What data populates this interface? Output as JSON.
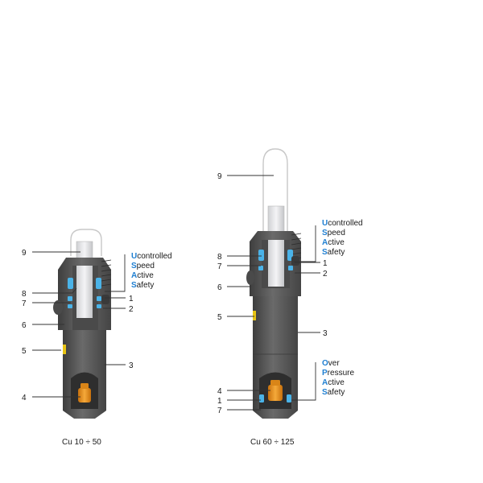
{
  "small": {
    "caption": "Cu 10 ÷ 50",
    "labels": {
      "9": "9",
      "8": "8",
      "7": "7",
      "6": "6",
      "5": "5",
      "4": "4",
      "3": "3",
      "1": "1",
      "2": "2"
    },
    "usas": [
      {
        "first": "U",
        "rest": "controlled"
      },
      {
        "first": "S",
        "rest": "peed"
      },
      {
        "first": "A",
        "rest": "ctive"
      },
      {
        "first": "S",
        "rest": "afety"
      }
    ]
  },
  "large": {
    "caption": "Cu 60 ÷ 125",
    "labels": {
      "9": "9",
      "8": "8",
      "7": "7",
      "6": "6",
      "5": "5",
      "3": "3",
      "1": "1",
      "2": "2",
      "4b": "4",
      "1b": "1",
      "7b": "7"
    },
    "usas": [
      {
        "first": "U",
        "rest": "controlled"
      },
      {
        "first": "S",
        "rest": "peed"
      },
      {
        "first": "A",
        "rest": "ctive"
      },
      {
        "first": "S",
        "rest": "afety"
      }
    ],
    "opas": [
      {
        "first": "O",
        "rest": "ver"
      },
      {
        "first": "P",
        "rest": "ressure"
      },
      {
        "first": "A",
        "rest": "ctive"
      },
      {
        "first": "S",
        "rest": "afety"
      }
    ]
  },
  "colors": {
    "body": "#5a5a5a",
    "dark": "#3a3a3a",
    "blue": "#4ab3e8",
    "yellow": "#e8c414",
    "orange": "#e89420",
    "rod": "#e8e8ea"
  }
}
